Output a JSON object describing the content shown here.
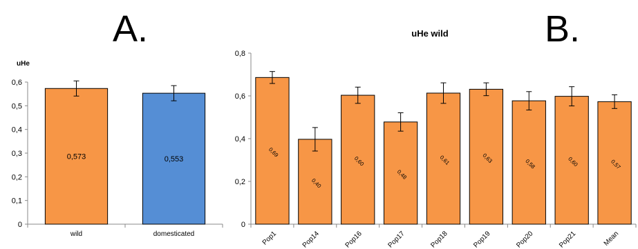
{
  "panel_letters": {
    "a": "A.",
    "b": "B."
  },
  "colors": {
    "wild": "#F79646",
    "domesticated": "#558ED5",
    "outline": "#000000",
    "axis": "#888888"
  },
  "chart_data": [
    {
      "type": "bar",
      "title": "",
      "ylabel": "uHe",
      "xlabel": "",
      "ylim": [
        0,
        0.6
      ],
      "yticks": [
        "0",
        "0,1",
        "0,2",
        "0,3",
        "0,4",
        "0,5",
        "0,6"
      ],
      "categories": [
        "wild",
        "domesticated"
      ],
      "values": [
        0.573,
        0.553
      ],
      "errors": [
        0.032,
        0.032
      ],
      "data_labels": [
        "0,573",
        "0,553"
      ],
      "bar_colors": [
        "#F79646",
        "#558ED5"
      ],
      "grid": false,
      "legend": "none"
    },
    {
      "type": "bar",
      "title": "uHe wild",
      "ylabel": "",
      "xlabel": "",
      "ylim": [
        0,
        0.8
      ],
      "yticks": [
        "0",
        "0,2",
        "0,4",
        "0,6",
        "0,8"
      ],
      "categories": [
        "Pop1",
        "Pop14",
        "Pop16",
        "Pop17",
        "Pop18",
        "Pop19",
        "Pop20",
        "Pop21",
        "Mean"
      ],
      "values": [
        0.686,
        0.397,
        0.603,
        0.478,
        0.613,
        0.631,
        0.577,
        0.598,
        0.573
      ],
      "errors": [
        0.028,
        0.055,
        0.038,
        0.043,
        0.048,
        0.03,
        0.043,
        0.045,
        0.032
      ],
      "data_labels": [
        "0,69",
        "0,40",
        "0,60",
        "0,48",
        "0,61",
        "0,63",
        "0,58",
        "0,60",
        "0,57"
      ],
      "bar_colors": [
        "#F79646"
      ],
      "grid": false,
      "legend": "none"
    }
  ]
}
